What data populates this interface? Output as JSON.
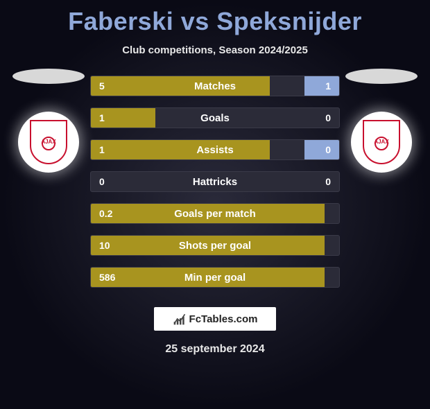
{
  "title": "Faberski vs Speksnijder",
  "subtitle": "Club competitions, Season 2024/2025",
  "date": "25 september 2024",
  "footer": {
    "brand": "FcTables.com"
  },
  "colors": {
    "left_bar": "#a8941f",
    "right_bar": "#8fa8d9",
    "title": "#8fa8d9",
    "bg_gradient_inner": "#2a2a3a",
    "bg_gradient_outer": "#0a0a15",
    "track": "#2b2b38"
  },
  "badge_left": {
    "team": "AJAX",
    "accent": "#c8102e"
  },
  "badge_right": {
    "team": "AJAX",
    "accent": "#c8102e"
  },
  "stats": [
    {
      "label": "Matches",
      "left_val": "5",
      "right_val": "1",
      "left_width_pct": 72,
      "right_width_pct": 14
    },
    {
      "label": "Goals",
      "left_val": "1",
      "right_val": "0",
      "left_width_pct": 26,
      "right_width_pct": 0
    },
    {
      "label": "Assists",
      "left_val": "1",
      "right_val": "0",
      "left_width_pct": 72,
      "right_width_pct": 14
    },
    {
      "label": "Hattricks",
      "left_val": "0",
      "right_val": "0",
      "left_width_pct": 0,
      "right_width_pct": 0
    },
    {
      "label": "Goals per match",
      "left_val": "0.2",
      "right_val": "",
      "left_width_pct": 94,
      "right_width_pct": 0
    },
    {
      "label": "Shots per goal",
      "left_val": "10",
      "right_val": "",
      "left_width_pct": 94,
      "right_width_pct": 0
    },
    {
      "label": "Min per goal",
      "left_val": "586",
      "right_val": "",
      "left_width_pct": 94,
      "right_width_pct": 0
    }
  ]
}
